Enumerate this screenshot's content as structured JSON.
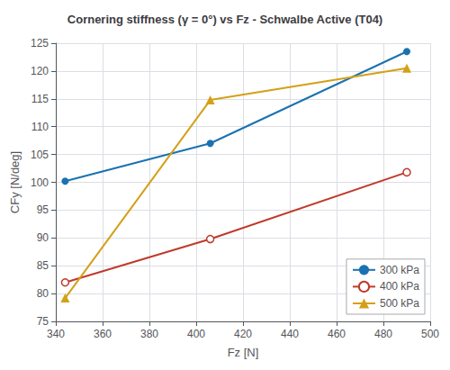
{
  "chart_data": {
    "type": "line",
    "title": "Cornering stiffness (γ = 0°) vs Fz - Schwalbe Active (T04)",
    "x_label": "Fz [N]",
    "y_label": "CFy [N/deg]",
    "xlim": [
      340,
      500
    ],
    "ylim": [
      75,
      125
    ],
    "xticks": [
      340,
      360,
      380,
      400,
      420,
      440,
      460,
      480,
      500
    ],
    "yticks": [
      75,
      80,
      85,
      90,
      95,
      100,
      105,
      110,
      115,
      120,
      125
    ],
    "grid": true,
    "legend": "lower right",
    "series": [
      {
        "name": "300 kPa",
        "color": "#1a72b0",
        "marker": "circle",
        "x": [
          344,
          406,
          490
        ],
        "values": [
          100.2,
          107.0,
          123.5
        ]
      },
      {
        "name": "400 kPa",
        "color": "#c0392b",
        "marker": "open_circle",
        "x": [
          344,
          406,
          490
        ],
        "values": [
          82.0,
          89.8,
          101.8
        ]
      },
      {
        "name": "500 kPa",
        "color": "#d4a017",
        "marker": "triangle",
        "x": [
          344,
          406,
          490
        ],
        "values": [
          79.2,
          114.8,
          120.5
        ]
      }
    ]
  }
}
